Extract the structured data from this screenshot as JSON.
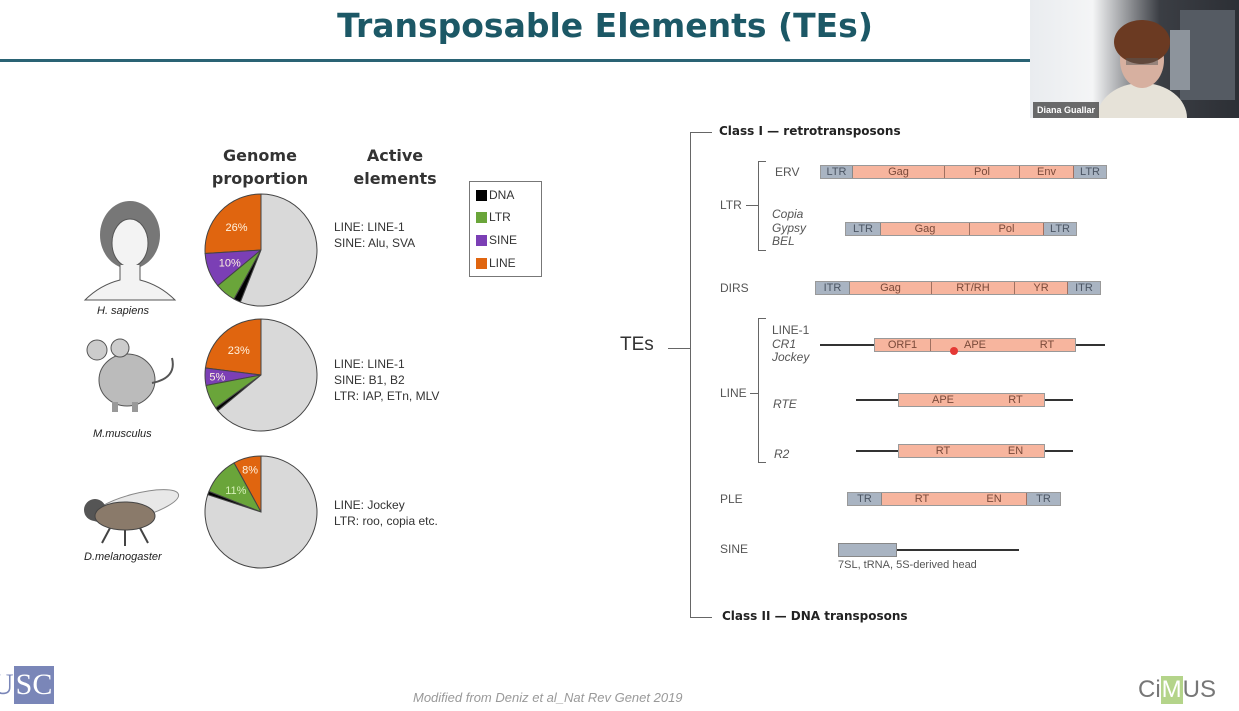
{
  "slide": {
    "title": "Transposable Elements (TEs)",
    "footer": "Modified from Deniz et al_Nat Rev Genet 2019",
    "logos": {
      "left": "USC",
      "right_pre": "Ci",
      "right_mid": "M",
      "right_post": "US"
    }
  },
  "webcam": {
    "participant_name": "Diana Guallar"
  },
  "left_panel": {
    "header_genome": [
      "Genome",
      "proportion"
    ],
    "header_active": [
      "Active",
      "elements"
    ],
    "legend": [
      {
        "label": "DNA",
        "color": "#000000"
      },
      {
        "label": "LTR",
        "color": "#6aa53a"
      },
      {
        "label": "SINE",
        "color": "#7b3fb5"
      },
      {
        "label": "LINE",
        "color": "#e0650f"
      }
    ],
    "species": [
      {
        "name": "H. sapiens",
        "active": [
          "LINE: LINE-1",
          "SINE: Alu, SVA"
        ]
      },
      {
        "name": "M.musculus",
        "active": [
          "LINE: LINE-1",
          "SINE: B1, B2",
          "LTR: IAP, ETn, MLV"
        ]
      },
      {
        "name": "D.melanogaster",
        "active": [
          "LINE: Jockey",
          "LTR: roo, copia etc."
        ]
      }
    ]
  },
  "chart_data": [
    {
      "type": "pie",
      "title": "H. sapiens genome proportion",
      "slices": [
        {
          "name": "LINE",
          "value": 26,
          "label": "26%"
        },
        {
          "name": "SINE",
          "value": 10,
          "label": "10%"
        },
        {
          "name": "LTR",
          "value": 6,
          "label": ""
        },
        {
          "name": "DNA",
          "value": 2,
          "label": ""
        },
        {
          "name": "Other",
          "value": 56,
          "label": ""
        }
      ]
    },
    {
      "type": "pie",
      "title": "M.musculus genome proportion",
      "slices": [
        {
          "name": "LINE",
          "value": 23,
          "label": "23%"
        },
        {
          "name": "SINE",
          "value": 5,
          "label": "5%"
        },
        {
          "name": "LTR",
          "value": 7,
          "label": ""
        },
        {
          "name": "DNA",
          "value": 1,
          "label": ""
        },
        {
          "name": "Other",
          "value": 64,
          "label": ""
        }
      ]
    },
    {
      "type": "pie",
      "title": "D.melanogaster genome proportion",
      "slices": [
        {
          "name": "LINE",
          "value": 8,
          "label": "8%"
        },
        {
          "name": "LTR",
          "value": 11,
          "label": "11%"
        },
        {
          "name": "DNA",
          "value": 1,
          "label": ""
        },
        {
          "name": "Other",
          "value": 80,
          "label": ""
        }
      ]
    }
  ],
  "diagram": {
    "root": "TEs",
    "class1": "Class I — retrotransposons",
    "class2": "Class II — DNA transposons",
    "groups": {
      "ltr": "LTR",
      "dirs": "DIRS",
      "line": "LINE",
      "ple": "PLE",
      "sine": "SINE"
    },
    "erv": {
      "name": "ERV",
      "segments": [
        "LTR",
        "Gag",
        "Pol",
        "Env",
        "LTR"
      ]
    },
    "copia": {
      "names": [
        "Copia",
        "Gypsy",
        "BEL"
      ],
      "segments": [
        "LTR",
        "Gag",
        "Pol",
        "LTR"
      ]
    },
    "dirs": {
      "segments": [
        "ITR",
        "Gag",
        "RT/RH",
        "YR",
        "ITR"
      ]
    },
    "line1": {
      "names": [
        "LINE-1",
        "CR1",
        "Jockey"
      ],
      "segments": [
        "ORF1",
        "APE",
        "RT"
      ]
    },
    "rte": {
      "name": "RTE",
      "segments": [
        "APE",
        "RT"
      ]
    },
    "r2": {
      "name": "R2",
      "segments": [
        "RT",
        "EN"
      ]
    },
    "ple": {
      "segments": [
        "TR",
        "RT",
        "EN",
        "TR"
      ]
    },
    "sine": {
      "caption": "7SL, tRNA, 5S-derived head"
    }
  }
}
